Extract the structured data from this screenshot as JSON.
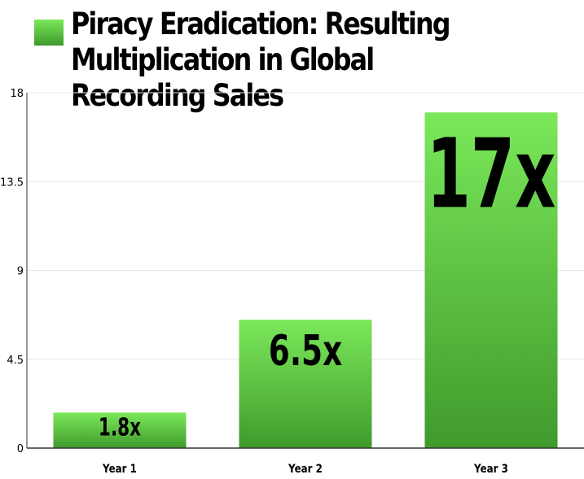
{
  "chart_data": {
    "type": "bar",
    "categories": [
      "Year 1",
      "Year 2",
      "Year 3"
    ],
    "series": [
      {
        "name": "Piracy Eradication: Resulting Multiplication in Global Recording Sales",
        "values": [
          1.8,
          6.5,
          17
        ]
      }
    ],
    "data_labels": [
      "1.8x",
      "6.5x",
      "17x"
    ],
    "y_ticks": [
      "0",
      "4.5",
      "9",
      "13.5",
      "18"
    ],
    "ylim": [
      0,
      18
    ],
    "grid": true,
    "legend_position": "top-left",
    "colors": {
      "bar_top": "#7be85a",
      "bar_bottom": "#3f9a2c",
      "grid": "#e6e6e6",
      "axis": "#333333",
      "text": "#000000"
    }
  }
}
